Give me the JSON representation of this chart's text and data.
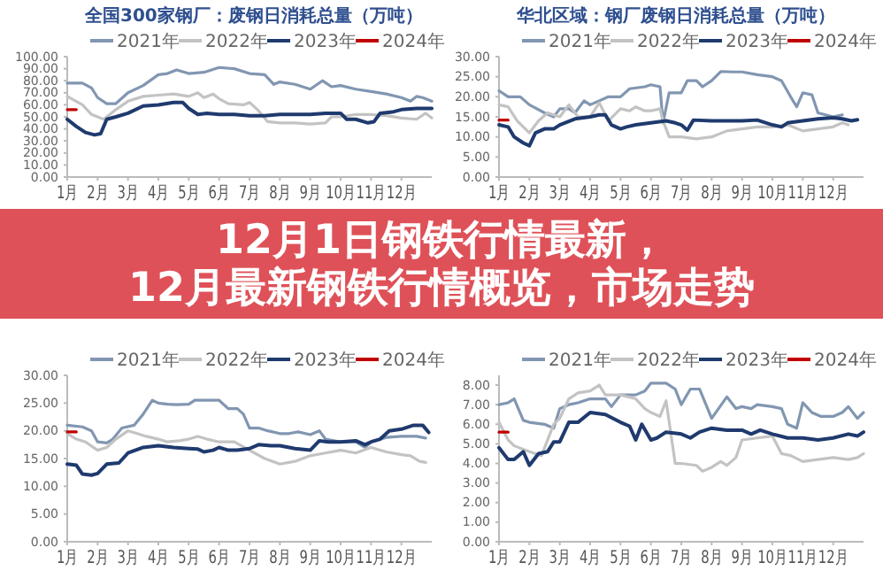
{
  "chart_data": [
    {
      "type": "line",
      "title": "全国300家钢厂：废钢日消耗总量（万吨）",
      "xlim": [
        1,
        13
      ],
      "xticks": [
        {
          "value": 1,
          "label": "1月"
        },
        {
          "value": 2,
          "label": "2月"
        },
        {
          "value": 3,
          "label": "3月"
        },
        {
          "value": 4,
          "label": "4月"
        },
        {
          "value": 5,
          "label": "5月"
        },
        {
          "value": 6,
          "label": "6月"
        },
        {
          "value": 7,
          "label": "7月"
        },
        {
          "value": 8,
          "label": "8月"
        },
        {
          "value": 9,
          "label": "9月"
        },
        {
          "value": 10,
          "label": "10月"
        },
        {
          "value": 11,
          "label": "11月"
        },
        {
          "value": 12,
          "label": "12月"
        }
      ],
      "ylim": [
        0,
        100
      ],
      "yticks": [
        {
          "value": 0,
          "label": "0.00"
        },
        {
          "value": 10,
          "label": "10.00"
        },
        {
          "value": 20,
          "label": "20.00"
        },
        {
          "value": 30,
          "label": "30.00"
        },
        {
          "value": 40,
          "label": "40.00"
        },
        {
          "value": 50,
          "label": "50.00"
        },
        {
          "value": 60,
          "label": "60.00"
        },
        {
          "value": 70,
          "label": "70.00"
        },
        {
          "value": 80,
          "label": "80.00"
        },
        {
          "value": 90,
          "label": "90.00"
        },
        {
          "value": 100,
          "label": "100.00"
        }
      ],
      "legend": "top",
      "line_style": "solid",
      "series": [
        {
          "name": "2021年",
          "color": "#8196b1",
          "x": [
            1,
            1.5,
            1.8,
            2,
            2.3,
            2.6,
            3,
            3.5,
            4,
            4.3,
            4.6,
            5,
            5.5,
            6,
            6.5,
            7,
            7.5,
            7.8,
            8,
            8.5,
            9,
            9.4,
            9.7,
            10,
            10.5,
            11,
            11.5,
            12,
            12.3,
            12.5,
            12.7,
            13
          ],
          "values": [
            78,
            78,
            74,
            66,
            61,
            61,
            70,
            76,
            85,
            86,
            89,
            86,
            87,
            91,
            90,
            86,
            85,
            77,
            79,
            77,
            73,
            80,
            75,
            76,
            73,
            71,
            69,
            66,
            63,
            67,
            66,
            63
          ]
        },
        {
          "name": "2022年",
          "color": "#c3c3c3",
          "x": [
            1,
            1.5,
            1.8,
            2.2,
            2.6,
            3,
            3.5,
            4,
            4.5,
            5,
            5.3,
            5.5,
            5.8,
            6,
            6.3,
            6.8,
            7,
            7.3,
            7.6,
            8,
            8.5,
            9,
            9.5,
            9.7,
            10,
            10.5,
            11,
            11.5,
            12,
            12.5,
            12.8,
            13
          ],
          "values": [
            67,
            60,
            52,
            48,
            56,
            63,
            67,
            68,
            69,
            67,
            70,
            66,
            69,
            65,
            61,
            60,
            62,
            55,
            46,
            45,
            45,
            44,
            45,
            50,
            50,
            52,
            52,
            51,
            49,
            48,
            53,
            49
          ]
        },
        {
          "name": "2023年",
          "color": "#1f3a6e",
          "x": [
            1,
            1.3,
            1.6,
            1.9,
            2.1,
            2.3,
            2.6,
            3,
            3.5,
            4,
            4.5,
            4.8,
            5,
            5.3,
            5.6,
            6,
            6.5,
            7,
            7.5,
            8,
            8.5,
            9,
            9.5,
            10,
            10.2,
            10.5,
            10.9,
            11.1,
            11.3,
            11.7,
            12,
            12.5,
            13
          ],
          "values": [
            48,
            42,
            37,
            35,
            36,
            48,
            50,
            53,
            59,
            60,
            62,
            62,
            57,
            52,
            53,
            52,
            52,
            51,
            51,
            52,
            52,
            52,
            53,
            53,
            48,
            48,
            45,
            46,
            53,
            54,
            56,
            57,
            57
          ]
        },
        {
          "name": "2024年",
          "color": "#c00000",
          "x": [
            1,
            1.3
          ],
          "values": [
            56,
            56
          ]
        }
      ]
    },
    {
      "type": "line",
      "title": "华北区域：钢厂废钢日消耗总量（万吨）",
      "xlim": [
        1,
        13
      ],
      "xticks": [
        {
          "value": 1,
          "label": "1月"
        },
        {
          "value": 2,
          "label": "2月"
        },
        {
          "value": 3,
          "label": "3月"
        },
        {
          "value": 4,
          "label": "4月"
        },
        {
          "value": 5,
          "label": "5月"
        },
        {
          "value": 6,
          "label": "6月"
        },
        {
          "value": 7,
          "label": "7月"
        },
        {
          "value": 8,
          "label": "8月"
        },
        {
          "value": 9,
          "label": "9月"
        },
        {
          "value": 10,
          "label": "10月"
        },
        {
          "value": 11,
          "label": "11月"
        },
        {
          "value": 12,
          "label": "12月"
        }
      ],
      "ylim": [
        0,
        30
      ],
      "yticks": [
        {
          "value": 0,
          "label": "0.00"
        },
        {
          "value": 5,
          "label": "5.00"
        },
        {
          "value": 10,
          "label": "10.00"
        },
        {
          "value": 15,
          "label": "15.00"
        },
        {
          "value": 20,
          "label": "20.00"
        },
        {
          "value": 25,
          "label": "25.00"
        },
        {
          "value": 30,
          "label": "30.00"
        }
      ],
      "legend": "top",
      "line_style": "solid",
      "series": [
        {
          "name": "2021年",
          "color": "#8196b1",
          "x": [
            1,
            1.3,
            1.7,
            2,
            2.5,
            2.8,
            3,
            3.3,
            3.5,
            3.8,
            4,
            4.3,
            4.6,
            5,
            5.3,
            5.8,
            6,
            6.3,
            6.4,
            6.6,
            7,
            7.2,
            7.5,
            7.7,
            8,
            8.3,
            8.7,
            9,
            9.5,
            10,
            10.3,
            10.6,
            10.8,
            11,
            11.3,
            11.5,
            12,
            12.3
          ],
          "values": [
            21.5,
            20,
            20,
            18,
            16,
            15,
            17,
            17,
            16,
            19,
            18,
            19,
            20,
            20,
            22,
            22.5,
            23,
            22.5,
            13.5,
            21,
            21,
            24,
            24,
            22.5,
            24,
            26.3,
            26.2,
            26.2,
            25.5,
            25,
            24,
            20,
            17.5,
            21,
            20.5,
            16,
            15,
            15.5
          ]
        },
        {
          "name": "2022年",
          "color": "#c3c3c3",
          "x": [
            1,
            1.3,
            1.6,
            2,
            2.3,
            2.6,
            3,
            3.3,
            3.6,
            4,
            4.3,
            4.6,
            5,
            5.3,
            5.5,
            5.8,
            6,
            6.3,
            6.4,
            6.6,
            7,
            7.5,
            8,
            8.5,
            9,
            9.5,
            10,
            10.5,
            11,
            11.5,
            12,
            12.3,
            12.5
          ],
          "values": [
            18,
            17.5,
            14,
            11,
            14,
            16,
            15,
            18,
            15,
            15,
            18.5,
            14,
            17,
            16.5,
            17.5,
            16.5,
            16.5,
            17,
            14,
            10,
            10,
            9.5,
            10,
            11.5,
            12,
            12.5,
            12.5,
            13,
            11.5,
            12,
            12.5,
            13.5,
            13
          ]
        },
        {
          "name": "2023年",
          "color": "#1f3a6e",
          "x": [
            1,
            1.3,
            1.5,
            1.8,
            2,
            2.2,
            2.5,
            2.8,
            3,
            3.5,
            4,
            4.3,
            4.5,
            4.7,
            5,
            5.2,
            5.5,
            6,
            6.5,
            6.8,
            7,
            7.2,
            7.4,
            8,
            8.5,
            9,
            9.5,
            10,
            10.3,
            10.5,
            11,
            11.5,
            12,
            12.3,
            12.6,
            12.8
          ],
          "values": [
            13,
            12.5,
            10,
            8.5,
            7.8,
            11,
            12,
            12,
            13,
            14.5,
            15,
            15.5,
            15.5,
            13,
            12,
            12.5,
            13,
            13.5,
            14,
            13.5,
            13,
            11.7,
            14.2,
            14,
            14,
            14,
            14.2,
            13,
            12.5,
            13.5,
            14,
            14.5,
            14.8,
            14.5,
            14,
            14.3
          ]
        },
        {
          "name": "2024年",
          "color": "#c00000",
          "x": [
            1,
            1.3
          ],
          "values": [
            14.2,
            14.2
          ]
        }
      ]
    },
    {
      "type": "line",
      "xlim": [
        1,
        13
      ],
      "xticks": [
        {
          "value": 1,
          "label": "1月"
        },
        {
          "value": 2,
          "label": "2月"
        },
        {
          "value": 3,
          "label": "3月"
        },
        {
          "value": 4,
          "label": "4月"
        },
        {
          "value": 5,
          "label": "5月"
        },
        {
          "value": 6,
          "label": "6月"
        },
        {
          "value": 7,
          "label": "7月"
        },
        {
          "value": 8,
          "label": "8月"
        },
        {
          "value": 9,
          "label": "9月"
        },
        {
          "value": 10,
          "label": "10月"
        },
        {
          "value": 11,
          "label": "11月"
        },
        {
          "value": 12,
          "label": "12月"
        }
      ],
      "ylim": [
        0,
        30
      ],
      "yticks": [
        {
          "value": 0,
          "label": "0.00"
        },
        {
          "value": 5,
          "label": "5.00"
        },
        {
          "value": 10,
          "label": "10.00"
        },
        {
          "value": 15,
          "label": "15.00"
        },
        {
          "value": 20,
          "label": "20.00"
        },
        {
          "value": 25,
          "label": "25.00"
        },
        {
          "value": 30,
          "label": "30.00"
        }
      ],
      "legend": "top",
      "line_style": "solid",
      "series": [
        {
          "name": "2021年",
          "color": "#8196b1",
          "x": [
            1,
            1.5,
            1.8,
            2,
            2.3,
            2.5,
            2.8,
            3.2,
            3.5,
            3.8,
            4,
            4.3,
            4.6,
            5,
            5.2,
            5.6,
            6,
            6.3,
            6.6,
            6.8,
            7,
            7.3,
            7.6,
            8,
            8.3,
            8.6,
            9,
            9.3,
            9.5,
            10,
            10.5,
            10.8,
            11,
            11.5,
            12,
            12.5,
            12.8
          ],
          "values": [
            21,
            20.7,
            20,
            18,
            17.8,
            18.5,
            20.5,
            21,
            23,
            25.5,
            25,
            24.8,
            24.7,
            24.8,
            25.5,
            25.5,
            25.5,
            24,
            24,
            23,
            20.5,
            20.5,
            20,
            19.5,
            19.5,
            19.8,
            19.3,
            20,
            18.5,
            18,
            18,
            17,
            18,
            18.8,
            19,
            19,
            18.7
          ]
        },
        {
          "name": "2022年",
          "color": "#c3c3c3",
          "x": [
            1,
            1.3,
            1.6,
            2,
            2.3,
            2.6,
            3,
            3.3,
            3.6,
            4,
            4.3,
            4.7,
            5,
            5.3,
            5.6,
            6,
            6.5,
            7,
            7.5,
            8,
            8.5,
            9,
            9.5,
            10,
            10.5,
            11,
            11.5,
            12,
            12.3,
            12.6,
            12.8
          ],
          "values": [
            19.5,
            18.5,
            18,
            16.5,
            17,
            18.5,
            20,
            19.5,
            19,
            18.5,
            18,
            18.2,
            18.5,
            19,
            18.5,
            18,
            18,
            16.5,
            15,
            14,
            14.5,
            15.5,
            16,
            16.5,
            16,
            17,
            16.2,
            15.7,
            15.5,
            14.5,
            14.3
          ]
        },
        {
          "name": "2023年",
          "color": "#1f3a6e",
          "x": [
            1,
            1.3,
            1.5,
            1.8,
            2,
            2.3,
            2.7,
            3,
            3.5,
            4,
            4.5,
            5,
            5.3,
            5.5,
            5.8,
            6,
            6.3,
            6.6,
            7,
            7.3,
            7.7,
            8,
            8.5,
            9,
            9.3,
            9.6,
            10,
            10.5,
            10.8,
            11,
            11.3,
            11.6,
            12,
            12.4,
            12.7,
            12.9
          ],
          "values": [
            14,
            13.8,
            12.2,
            12,
            12.3,
            14,
            14.2,
            16,
            17,
            17.3,
            17,
            16.8,
            16.7,
            16.2,
            16.5,
            17,
            16.5,
            16.5,
            16.8,
            17.5,
            17.3,
            17.3,
            16.8,
            16.5,
            18.2,
            18,
            18,
            18.2,
            17.5,
            18,
            18.5,
            20,
            20.3,
            21,
            21,
            19.7
          ]
        },
        {
          "name": "2024年",
          "color": "#c00000",
          "x": [
            1,
            1.3
          ],
          "values": [
            19.8,
            19.8
          ]
        }
      ]
    },
    {
      "type": "line",
      "xlim": [
        1,
        13
      ],
      "xticks": [
        {
          "value": 1,
          "label": "1月"
        },
        {
          "value": 2,
          "label": "2月"
        },
        {
          "value": 3,
          "label": "3月"
        },
        {
          "value": 4,
          "label": "4月"
        },
        {
          "value": 5,
          "label": "5月"
        },
        {
          "value": 6,
          "label": "6月"
        },
        {
          "value": 7,
          "label": "7月"
        },
        {
          "value": 8,
          "label": "8月"
        },
        {
          "value": 9,
          "label": "9月"
        },
        {
          "value": 10,
          "label": "10月"
        },
        {
          "value": 11,
          "label": "11月"
        },
        {
          "value": 12,
          "label": "12月"
        }
      ],
      "ylim": [
        0,
        8.5
      ],
      "yticks": [
        {
          "value": 0,
          "label": "0.00"
        },
        {
          "value": 1,
          "label": "1.00"
        },
        {
          "value": 2,
          "label": "2.00"
        },
        {
          "value": 3,
          "label": "3.00"
        },
        {
          "value": 4,
          "label": "4.00"
        },
        {
          "value": 5,
          "label": "5.00"
        },
        {
          "value": 6,
          "label": "6.00"
        },
        {
          "value": 7,
          "label": "7.00"
        },
        {
          "value": 8,
          "label": "8.00"
        }
      ],
      "legend": "top",
      "line_style": "solid",
      "series": [
        {
          "name": "2021年",
          "color": "#8196b1",
          "x": [
            1,
            1.3,
            1.5,
            1.8,
            2,
            2.5,
            2.8,
            3,
            3.3,
            3.6,
            4,
            4.5,
            4.7,
            5,
            5.5,
            5.8,
            6,
            6.5,
            6.8,
            7,
            7.3,
            7.6,
            8,
            8.5,
            8.8,
            9,
            9.3,
            9.5,
            10,
            10.3,
            10.5,
            10.8,
            11,
            11.3,
            11.6,
            12,
            12.3,
            12.5,
            12.8,
            13
          ],
          "values": [
            7,
            7.1,
            7.3,
            6.2,
            6.1,
            6,
            5.8,
            6.8,
            7,
            7.1,
            7.3,
            7.3,
            6.9,
            7.5,
            7.5,
            7.7,
            8.1,
            8.1,
            7.8,
            7,
            7.8,
            7.8,
            6.3,
            7.4,
            6.8,
            6.9,
            6.8,
            7,
            6.9,
            6.8,
            6,
            5.8,
            7.1,
            6.6,
            6.4,
            6.4,
            6.6,
            6.9,
            6.3,
            6.6
          ]
        },
        {
          "name": "2022年",
          "color": "#c3c3c3",
          "x": [
            1,
            1.3,
            1.5,
            2,
            2.4,
            2.8,
            3,
            3.3,
            3.6,
            4,
            4.3,
            4.5,
            5,
            5.5,
            5.8,
            6,
            6.3,
            6.5,
            6.8,
            7,
            7.5,
            7.7,
            8,
            8.3,
            8.5,
            8.8,
            9,
            9.5,
            10,
            10.3,
            10.6,
            11,
            11.5,
            12,
            12.5,
            12.8,
            13
          ],
          "values": [
            6.1,
            5.2,
            4.9,
            4.6,
            4.4,
            6,
            6.3,
            7.3,
            7.6,
            7.7,
            8,
            7.5,
            7.5,
            7.3,
            6.8,
            6.6,
            6.4,
            7.2,
            4,
            4,
            3.9,
            3.6,
            3.8,
            4.1,
            3.9,
            4.3,
            5.2,
            5.3,
            5.4,
            4.5,
            4.4,
            4.1,
            4.2,
            4.3,
            4.2,
            4.3,
            4.5
          ]
        },
        {
          "name": "2023年",
          "color": "#1f3a6e",
          "x": [
            1,
            1.3,
            1.5,
            1.8,
            2,
            2.3,
            2.6,
            2.8,
            3,
            3.3,
            3.6,
            4,
            4.5,
            5,
            5.3,
            5.5,
            5.7,
            6,
            6.2,
            6.5,
            7,
            7.3,
            7.6,
            8,
            8.5,
            9,
            9.3,
            9.6,
            10,
            10.5,
            11,
            11.5,
            12,
            12.5,
            12.8,
            13
          ],
          "values": [
            4.8,
            4.2,
            4.2,
            4.6,
            3.9,
            4.5,
            4.6,
            5.1,
            5.1,
            6.1,
            6.1,
            6.6,
            6.5,
            6.1,
            5.9,
            5.2,
            6,
            5.2,
            5.3,
            5.6,
            5.5,
            5.3,
            5.6,
            5.8,
            5.7,
            5.7,
            5.5,
            5.7,
            5.5,
            5.3,
            5.3,
            5.2,
            5.3,
            5.5,
            5.4,
            5.6
          ]
        },
        {
          "name": "2024年",
          "color": "#c00000",
          "x": [
            1,
            1.3
          ],
          "values": [
            5.6,
            5.6
          ]
        }
      ]
    },
    {
      "type": "other",
      "title": "12月1日钢铁行情最新，12月最新钢铁行情概览，市场走势"
    }
  ]
}
